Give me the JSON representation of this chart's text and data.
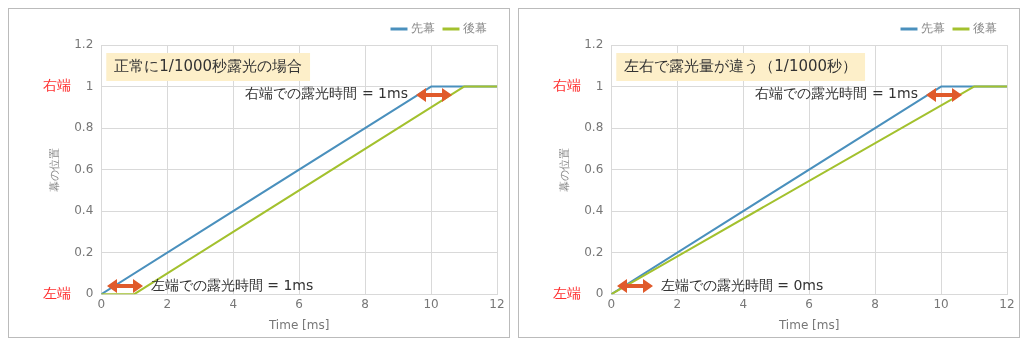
{
  "chart_data": [
    {
      "type": "line",
      "title": "正常に1/1000秒露光の場合",
      "xlabel": "Time [ms]",
      "ylabel": "幕の位置",
      "xlim": [
        0,
        12
      ],
      "xticks": [
        0,
        2,
        4,
        6,
        8,
        10,
        12
      ],
      "ylim": [
        0,
        1.2
      ],
      "yticks": [
        0,
        0.2,
        0.4,
        0.6,
        0.8,
        1,
        1.2
      ],
      "grid": true,
      "legend": "top right",
      "marker": "none",
      "line_style": "solid",
      "series": [
        {
          "name": "先幕",
          "color": "#4a90bd",
          "x": [
            0,
            10,
            12
          ],
          "values": [
            0,
            1,
            1
          ]
        },
        {
          "name": "後幕",
          "color": "#a3c12e",
          "x": [
            0,
            1,
            11,
            12
          ],
          "values": [
            0,
            0,
            1,
            1
          ]
        }
      ],
      "annotations": [
        "右端",
        "左端",
        "右端での露光時間 = 1ms",
        "左端での露光時間 = 1ms"
      ]
    },
    {
      "type": "line",
      "title": "左右で露光量が違う（1/1000秒）",
      "xlabel": "Time [ms]",
      "ylabel": "幕の位置",
      "xlim": [
        0,
        12
      ],
      "xticks": [
        0,
        2,
        4,
        6,
        8,
        10,
        12
      ],
      "ylim": [
        0,
        1.2
      ],
      "yticks": [
        0,
        0.2,
        0.4,
        0.6,
        0.8,
        1,
        1.2
      ],
      "grid": true,
      "legend": "top right",
      "marker": "none",
      "line_style": "solid",
      "series": [
        {
          "name": "先幕",
          "color": "#4a90bd",
          "x": [
            0,
            10,
            12
          ],
          "values": [
            0,
            1,
            1
          ]
        },
        {
          "name": "後幕",
          "color": "#a3c12e",
          "x": [
            0,
            11,
            12
          ],
          "values": [
            0,
            1,
            1
          ]
        }
      ],
      "annotations": [
        "右端",
        "左端",
        "右端での露光時間 = 1ms",
        "左端での露光時間 = 0ms"
      ]
    }
  ]
}
